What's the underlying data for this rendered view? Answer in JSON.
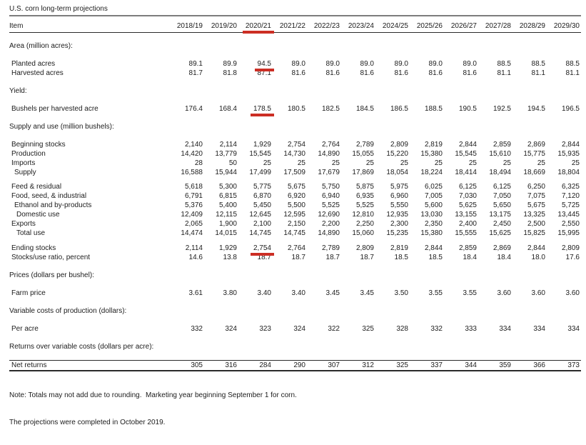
{
  "title": "U.S. corn long-term projections",
  "annotations": {
    "highlight_color": "#cc2e24",
    "style": "thick red pen underlines",
    "underlined_items": [
      "column header 2020/21",
      "Planted acres 2020/21 value 94.5",
      "Bushels per harvested acre 2020/21 value 178.5",
      "Ending stocks 2020/21 value 2,754"
    ]
  },
  "table": {
    "item_header": "Item",
    "year_columns": [
      "2018/19",
      "2019/20",
      "2020/21",
      "2021/22",
      "2022/23",
      "2023/24",
      "2024/25",
      "2025/26",
      "2026/27",
      "2027/28",
      "2028/29",
      "2029/30"
    ],
    "header_red_underline_col": 2,
    "rows": [
      {
        "kind": "section",
        "label": "Area (million acres):"
      },
      {
        "kind": "data",
        "label": "Planted acres",
        "indent": 1,
        "red_col": 2,
        "values": [
          "89.1",
          "89.9",
          "94.5",
          "89.0",
          "89.0",
          "89.0",
          "89.0",
          "89.0",
          "89.0",
          "88.5",
          "88.5",
          "88.5"
        ]
      },
      {
        "kind": "data",
        "label": "Harvested acres",
        "indent": 1,
        "values": [
          "81.7",
          "81.8",
          "87.1",
          "81.6",
          "81.6",
          "81.6",
          "81.6",
          "81.6",
          "81.6",
          "81.1",
          "81.1",
          "81.1"
        ]
      },
      {
        "kind": "section",
        "label": "Yield:"
      },
      {
        "kind": "data",
        "label": "Bushels per harvested acre",
        "indent": 1,
        "red_col": 2,
        "values": [
          "176.4",
          "168.4",
          "178.5",
          "180.5",
          "182.5",
          "184.5",
          "186.5",
          "188.5",
          "190.5",
          "192.5",
          "194.5",
          "196.5"
        ]
      },
      {
        "kind": "section",
        "label": "Supply and use (million bushels):"
      },
      {
        "kind": "data",
        "label": "Beginning stocks",
        "indent": 1,
        "values": [
          "2,140",
          "2,114",
          "1,929",
          "2,754",
          "2,764",
          "2,789",
          "2,809",
          "2,819",
          "2,844",
          "2,859",
          "2,869",
          "2,844"
        ]
      },
      {
        "kind": "data",
        "label": "Production",
        "indent": 1,
        "values": [
          "14,420",
          "13,779",
          "15,545",
          "14,730",
          "14,890",
          "15,055",
          "15,220",
          "15,380",
          "15,545",
          "15,610",
          "15,775",
          "15,935"
        ]
      },
      {
        "kind": "data",
        "label": "Imports",
        "indent": 1,
        "values": [
          "28",
          "50",
          "25",
          "25",
          "25",
          "25",
          "25",
          "25",
          "25",
          "25",
          "25",
          "25"
        ]
      },
      {
        "kind": "data",
        "label": "Supply",
        "indent": 2,
        "values": [
          "16,588",
          "15,944",
          "17,499",
          "17,509",
          "17,679",
          "17,869",
          "18,054",
          "18,224",
          "18,414",
          "18,494",
          "18,669",
          "18,804"
        ]
      },
      {
        "kind": "data",
        "label": "Feed & residual",
        "indent": 1,
        "gap": "sm",
        "values": [
          "5,618",
          "5,300",
          "5,775",
          "5,675",
          "5,750",
          "5,875",
          "5,975",
          "6,025",
          "6,125",
          "6,125",
          "6,250",
          "6,325"
        ]
      },
      {
        "kind": "data",
        "label": "Food, seed, & industrial",
        "indent": 1,
        "values": [
          "6,791",
          "6,815",
          "6,870",
          "6,920",
          "6,940",
          "6,935",
          "6,960",
          "7,005",
          "7,030",
          "7,050",
          "7,075",
          "7,120"
        ]
      },
      {
        "kind": "data",
        "label": "Ethanol and by-products",
        "indent": 2,
        "values": [
          "5,376",
          "5,400",
          "5,450",
          "5,500",
          "5,525",
          "5,525",
          "5,550",
          "5,600",
          "5,625",
          "5,650",
          "5,675",
          "5,725"
        ]
      },
      {
        "kind": "data",
        "label": "Domestic use",
        "indent": 3,
        "values": [
          "12,409",
          "12,115",
          "12,645",
          "12,595",
          "12,690",
          "12,810",
          "12,935",
          "13,030",
          "13,155",
          "13,175",
          "13,325",
          "13,445"
        ]
      },
      {
        "kind": "data",
        "label": "Exports",
        "indent": 1,
        "values": [
          "2,065",
          "1,900",
          "2,100",
          "2,150",
          "2,200",
          "2,250",
          "2,300",
          "2,350",
          "2,400",
          "2,450",
          "2,500",
          "2,550"
        ]
      },
      {
        "kind": "data",
        "label": "Total use",
        "indent": 3,
        "values": [
          "14,474",
          "14,015",
          "14,745",
          "14,745",
          "14,890",
          "15,060",
          "15,235",
          "15,380",
          "15,555",
          "15,625",
          "15,825",
          "15,995"
        ]
      },
      {
        "kind": "data",
        "label": "Ending stocks",
        "indent": 1,
        "gap": "lg",
        "red_col": 2,
        "values": [
          "2,114",
          "1,929",
          "2,754",
          "2,764",
          "2,789",
          "2,809",
          "2,819",
          "2,844",
          "2,859",
          "2,869",
          "2,844",
          "2,809"
        ]
      },
      {
        "kind": "data",
        "label": "Stocks/use ratio, percent",
        "indent": 1,
        "values": [
          "14.6",
          "13.8",
          "18.7",
          "18.7",
          "18.7",
          "18.7",
          "18.5",
          "18.5",
          "18.4",
          "18.4",
          "18.0",
          "17.6"
        ]
      },
      {
        "kind": "section",
        "label": "Prices (dollars per bushel):"
      },
      {
        "kind": "data",
        "label": "Farm price",
        "indent": 1,
        "values": [
          "3.61",
          "3.80",
          "3.40",
          "3.40",
          "3.45",
          "3.45",
          "3.50",
          "3.55",
          "3.55",
          "3.60",
          "3.60",
          "3.60"
        ]
      },
      {
        "kind": "section",
        "label": "Variable costs of production (dollars):"
      },
      {
        "kind": "data",
        "label": "Per acre",
        "indent": 1,
        "values": [
          "332",
          "324",
          "323",
          "324",
          "322",
          "325",
          "328",
          "332",
          "333",
          "334",
          "334",
          "334"
        ]
      },
      {
        "kind": "section",
        "label": "Returns over variable costs (dollars per acre):"
      },
      {
        "kind": "data",
        "label": "Net returns",
        "indent": 1,
        "ruled": true,
        "values": [
          "305",
          "316",
          "284",
          "290",
          "307",
          "312",
          "325",
          "337",
          "344",
          "359",
          "366",
          "373"
        ]
      }
    ]
  },
  "notes": [
    "Note: Totals may not add due to rounding.  Marketing year beginning September 1 for corn.",
    "The projections were completed in October 2019."
  ]
}
